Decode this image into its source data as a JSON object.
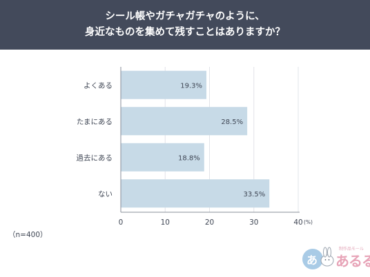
{
  "header": {
    "title_line1": "シール帳やガチャガチャのように、",
    "title_line2": "身近なものを集めて残すことはありますか？"
  },
  "chart_data": {
    "type": "bar",
    "orientation": "horizontal",
    "categories": [
      "よくある",
      "たまにある",
      "過去にある",
      "ない"
    ],
    "values": [
      19.3,
      28.5,
      18.8,
      33.5
    ],
    "value_labels": [
      "19.3%",
      "28.5%",
      "18.8%",
      "33.5%"
    ],
    "xlim": [
      0,
      40
    ],
    "x_ticks": [
      0,
      10,
      20,
      30,
      40
    ],
    "x_unit": "(%)",
    "grid": true,
    "bar_color": "#c7dae7"
  },
  "note": "（n=400）",
  "logo": {
    "caption": "制作品モール",
    "text": "あるる"
  }
}
